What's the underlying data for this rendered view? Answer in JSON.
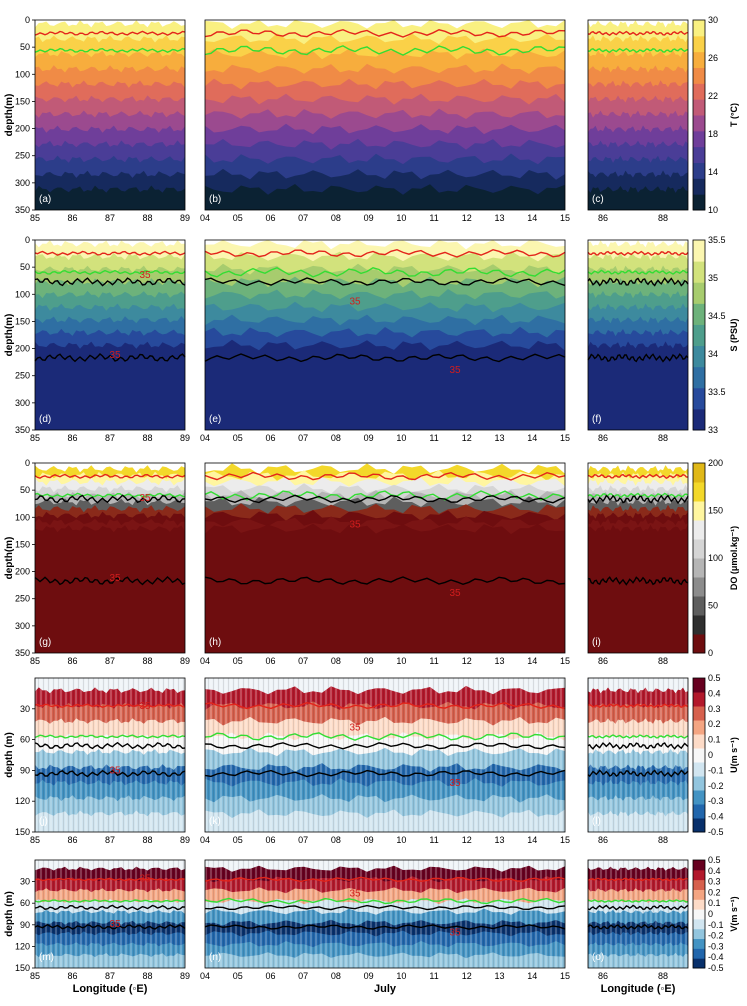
{
  "figure": {
    "xlabels": [
      "Longitude (◦E)",
      "July",
      "Longitude (◦E)"
    ],
    "left_ticks": [
      "85",
      "86",
      "87",
      "88",
      "89"
    ],
    "mid_ticks": [
      "04",
      "05",
      "06",
      "07",
      "08",
      "09",
      "10",
      "11",
      "12",
      "13",
      "14",
      "15"
    ],
    "right_ticks": [
      "86",
      "88"
    ]
  },
  "chart_data": [
    {
      "type": "heatmap",
      "variable": "T",
      "colorbar_label": "T (°C)",
      "colorbar_ticks": [
        10,
        14,
        18,
        22,
        26,
        30
      ],
      "colorbar_colors": [
        "#0b2233",
        "#162a5e",
        "#2c3d8a",
        "#4a3d97",
        "#6f3e9a",
        "#9b4a8f",
        "#c15a77",
        "#e06c5b",
        "#f08b46",
        "#f7ad3d",
        "#fad148",
        "#f9f081"
      ],
      "ylabel": "depth(m)",
      "ylim": [
        350,
        0
      ],
      "yticks": [
        0,
        50,
        100,
        150,
        200,
        250,
        300,
        350
      ],
      "panel_labels": [
        "(a)",
        "(b)",
        "(c)"
      ]
    },
    {
      "type": "heatmap",
      "variable": "S",
      "colorbar_label": "S (PSU)",
      "colorbar_ticks": [
        33,
        33.5,
        34,
        34.5,
        35,
        35.5
      ],
      "colorbar_colors": [
        "#1b2a78",
        "#274a9c",
        "#2f6fa3",
        "#3d8a9e",
        "#4e9e8c",
        "#6db27b",
        "#a7cc6e",
        "#d2e27c",
        "#fbf6b0"
      ],
      "ylabel": "depth(m)",
      "ylim": [
        350,
        0
      ],
      "yticks": [
        0,
        50,
        100,
        150,
        200,
        250,
        300,
        350
      ],
      "panel_labels": [
        "(d)",
        "(e)",
        "(f)"
      ],
      "contour_label": "35"
    },
    {
      "type": "heatmap",
      "variable": "DO",
      "colorbar_label": "DO (μmol.kg⁻¹)",
      "colorbar_ticks": [
        0,
        50,
        100,
        150,
        200
      ],
      "colorbar_colors": [
        "#6e0d0f",
        "#2f2f2f",
        "#5e5e5e",
        "#8c8c8c",
        "#b5b5b5",
        "#d5d5d5",
        "#ececec",
        "#fff6a0",
        "#f3d82a",
        "#e0b818"
      ],
      "ylabel": "depth(m)",
      "ylim": [
        350,
        0
      ],
      "yticks": [
        0,
        50,
        100,
        150,
        200,
        250,
        300,
        350
      ],
      "panel_labels": [
        "(g)",
        "(h)",
        "(i)"
      ],
      "contour_label": "35"
    },
    {
      "type": "heatmap",
      "variable": "U",
      "colorbar_label": "U(m s⁻¹)",
      "colorbar_ticks": [
        -0.5,
        -0.4,
        -0.3,
        -0.2,
        -0.1,
        0,
        0.1,
        0.2,
        0.3,
        0.4,
        0.5
      ],
      "colorbar_colors": [
        "#08306b",
        "#2166ac",
        "#4393c3",
        "#92c5de",
        "#d1e5f0",
        "#f7f7f7",
        "#fddbc7",
        "#f4a582",
        "#d6604d",
        "#b2182b",
        "#67001f"
      ],
      "ylabel": "depth (m)",
      "ylim": [
        150,
        0
      ],
      "yticks": [
        30,
        60,
        90,
        120,
        150
      ],
      "panel_labels": [
        "(j)",
        "(k)",
        "(l)"
      ],
      "contour_label": "35"
    },
    {
      "type": "heatmap",
      "variable": "V",
      "colorbar_label": "V(m s⁻¹)",
      "colorbar_ticks": [
        -0.5,
        -0.4,
        -0.3,
        -0.2,
        -0.1,
        0,
        0.1,
        0.2,
        0.3,
        0.4,
        0.5
      ],
      "colorbar_colors": [
        "#08306b",
        "#2166ac",
        "#4393c3",
        "#92c5de",
        "#d1e5f0",
        "#f7f7f7",
        "#fddbc7",
        "#f4a582",
        "#d6604d",
        "#b2182b",
        "#67001f"
      ],
      "ylabel": "depth (m)",
      "ylim": [
        150,
        0
      ],
      "yticks": [
        30,
        60,
        90,
        120,
        150
      ],
      "panel_labels": [
        "(m)",
        "(n)",
        "(o)"
      ],
      "contour_label": "35"
    }
  ]
}
